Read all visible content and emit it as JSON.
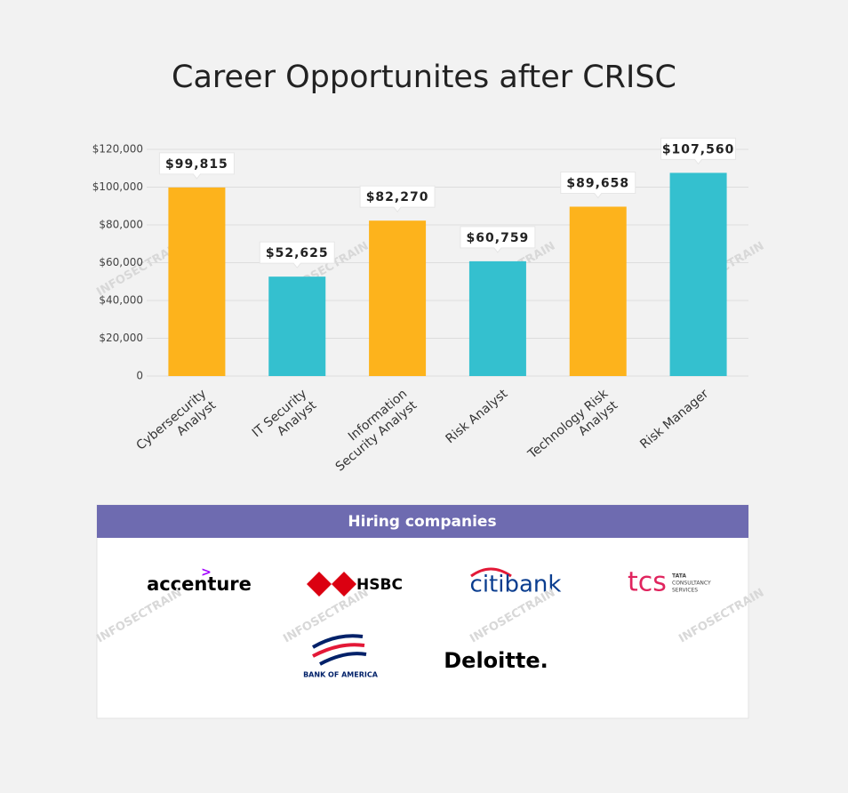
{
  "chart_data": {
    "type": "bar",
    "title": "Career Opportunites after CRISC",
    "categories": [
      "Cybersecurity Analyst",
      "IT Security Analyst",
      "Information Security Analyst",
      "Risk Analyst",
      "Technology Risk Analyst",
      "Risk Manager"
    ],
    "values": [
      99815,
      52625,
      82270,
      60759,
      89658,
      107560
    ],
    "value_labels": [
      "$99,815",
      "$52,625",
      "$82,270",
      "$60,759",
      "$89,658",
      "$107,560"
    ],
    "colors": [
      "#fdb31c",
      "#34c0cf",
      "#fdb31c",
      "#34c0cf",
      "#fdb31c",
      "#34c0cf"
    ],
    "ylim": [
      0,
      120000
    ],
    "yticks": [
      0,
      {
        "value": 20000,
        "label": "$20,000"
      },
      {
        "value": 40000,
        "label": "$40,000"
      },
      {
        "value": 60000,
        "label": "$60,000"
      },
      {
        "value": 80000,
        "label": "$80,000"
      },
      {
        "value": 100000,
        "label": "$100,000"
      },
      {
        "value": 120000,
        "label": "$120,000"
      }
    ],
    "grid": true
  },
  "hiring": {
    "title": "Hiring companies",
    "companies": [
      "accenture",
      "HSBC",
      "citibank",
      "tcs",
      "BANK OF AMERICA",
      "Deloitte."
    ],
    "tcs_subtitle": [
      "TATA",
      "CONSULTANCY",
      "SERVICES"
    ]
  },
  "watermark": "INFOSECTRAIN"
}
